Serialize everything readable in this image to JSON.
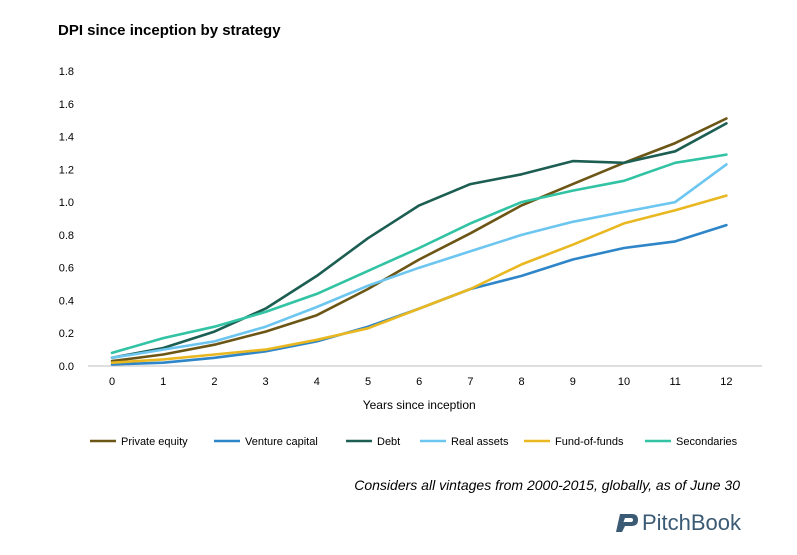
{
  "colors": {
    "Private equity": "#6b5616",
    "Venture capital": "#2e86c8",
    "Debt": "#1c5e52",
    "Real assets": "#6cc6f0",
    "Fund-of-funds": "#e9b821",
    "Secondaries": "#31c3a3",
    "axis": "#bfbfbf",
    "logo": "#3b5a74"
  },
  "footnote": "Considers all vintages from 2000-2015, globally, as of June 30",
  "logo": {
    "text": "PitchBook",
    "icon": "pitchbook-logo-icon"
  },
  "chart_data": {
    "type": "line",
    "title": "DPI since inception by strategy",
    "xlabel": "Years since inception",
    "ylabel": "",
    "x": [
      0,
      1,
      2,
      3,
      4,
      5,
      6,
      7,
      8,
      9,
      10,
      11,
      12
    ],
    "ylim": [
      0,
      1.8
    ],
    "yticks": [
      "0.0",
      "0.2",
      "0.4",
      "0.6",
      "0.8",
      "1.0",
      "1.2",
      "1.4",
      "1.6",
      "1.8"
    ],
    "grid": false,
    "legend": "bottom",
    "series": [
      {
        "name": "Private equity",
        "values": [
          0.03,
          0.07,
          0.13,
          0.21,
          0.31,
          0.47,
          0.65,
          0.81,
          0.98,
          1.11,
          1.24,
          1.36,
          1.51
        ]
      },
      {
        "name": "Venture capital",
        "values": [
          0.01,
          0.02,
          0.05,
          0.09,
          0.15,
          0.24,
          0.35,
          0.47,
          0.55,
          0.65,
          0.72,
          0.76,
          0.86
        ]
      },
      {
        "name": "Debt",
        "values": [
          0.05,
          0.11,
          0.21,
          0.35,
          0.55,
          0.78,
          0.98,
          1.11,
          1.17,
          1.25,
          1.24,
          1.31,
          1.48
        ]
      },
      {
        "name": "Real assets",
        "values": [
          0.05,
          0.1,
          0.15,
          0.24,
          0.36,
          0.49,
          0.6,
          0.7,
          0.8,
          0.88,
          0.94,
          1.0,
          1.23
        ]
      },
      {
        "name": "Fund-of-funds",
        "values": [
          0.02,
          0.04,
          0.07,
          0.1,
          0.16,
          0.23,
          0.35,
          0.47,
          0.62,
          0.74,
          0.87,
          0.95,
          1.04
        ]
      },
      {
        "name": "Secondaries",
        "values": [
          0.08,
          0.17,
          0.24,
          0.33,
          0.44,
          0.58,
          0.72,
          0.87,
          1.0,
          1.07,
          1.13,
          1.24,
          1.29
        ]
      }
    ]
  }
}
